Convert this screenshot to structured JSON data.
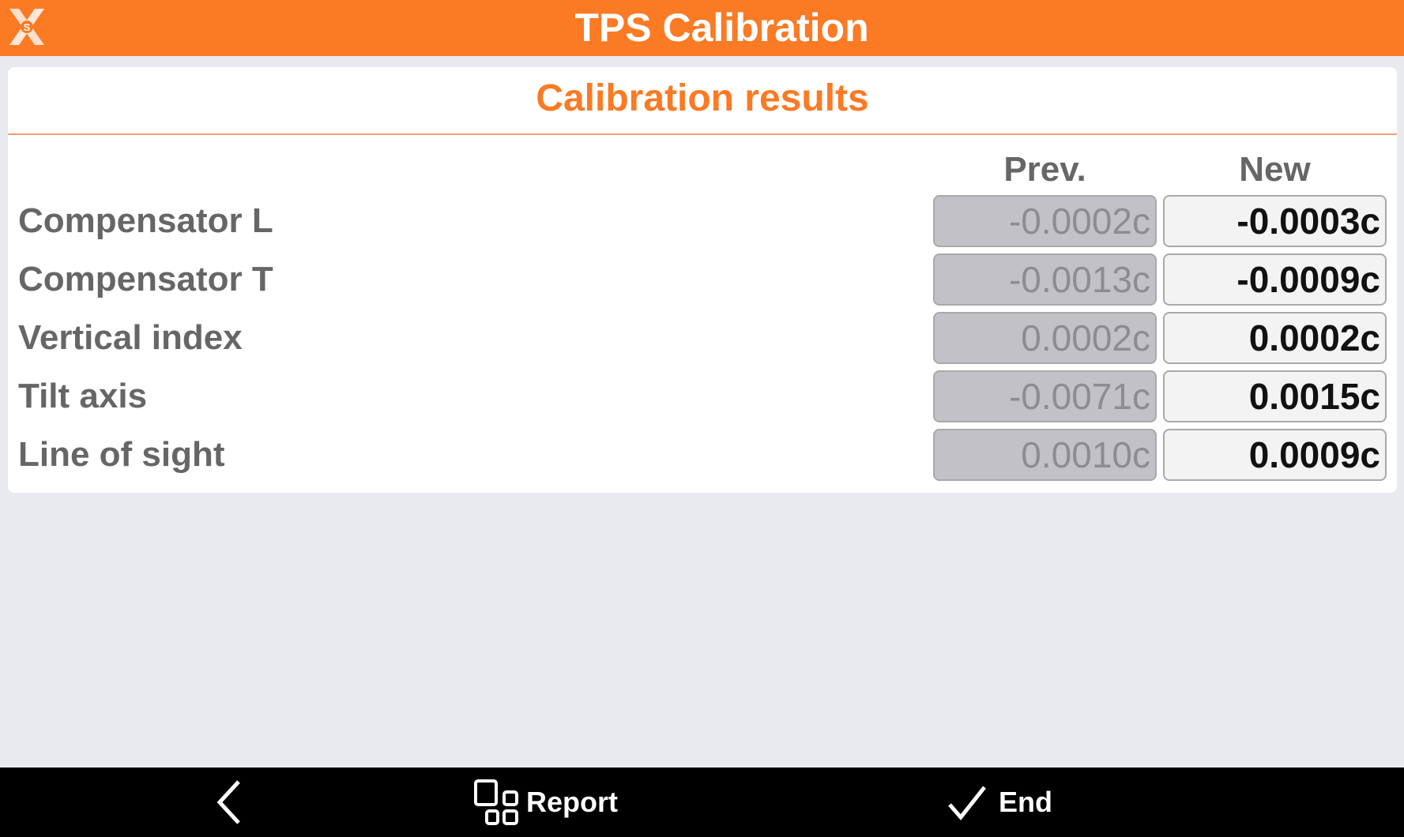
{
  "header": {
    "title": "TPS Calibration",
    "logo_icon": "xs-logo-icon"
  },
  "card": {
    "title": "Calibration results",
    "columns": {
      "prev": "Prev.",
      "new": "New"
    },
    "rows": [
      {
        "label": "Compensator L",
        "prev": "-0.0002c",
        "new": "-0.0003c"
      },
      {
        "label": "Compensator T",
        "prev": "-0.0013c",
        "new": "-0.0009c"
      },
      {
        "label": "Vertical index",
        "prev": "0.0002c",
        "new": "0.0002c"
      },
      {
        "label": "Tilt axis",
        "prev": "-0.0071c",
        "new": "0.0015c"
      },
      {
        "label": "Line of sight",
        "prev": "0.0010c",
        "new": "0.0009c"
      }
    ]
  },
  "bottom": {
    "back_icon": "chevron-left-icon",
    "report_label": "Report",
    "end_label": "End"
  },
  "colors": {
    "accent": "#fb7a24",
    "bar": "#000000",
    "background": "#e9eaef"
  }
}
